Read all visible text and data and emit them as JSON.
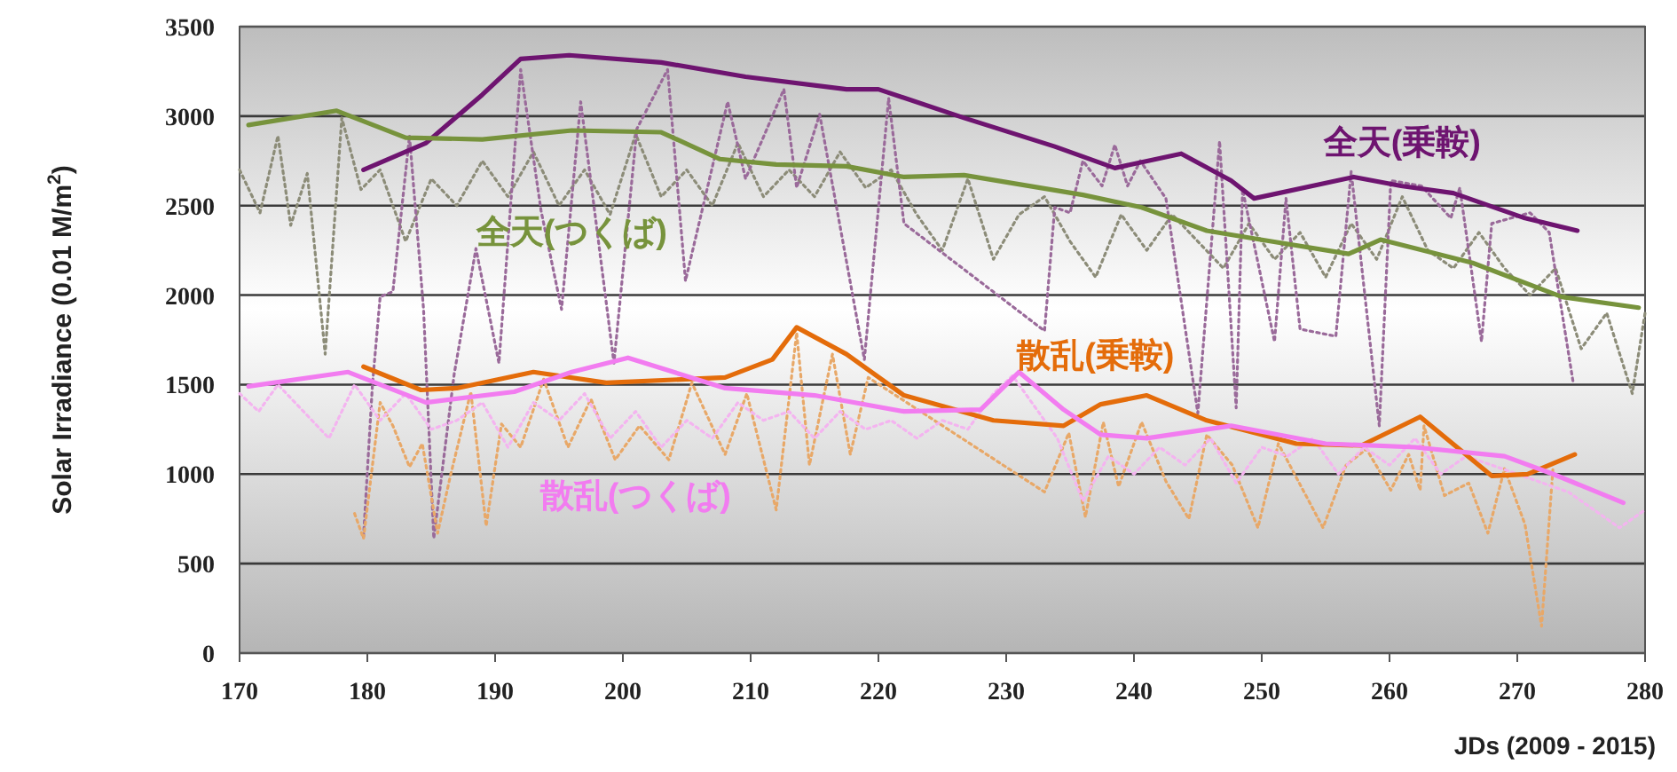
{
  "chart_data": {
    "type": "line",
    "xlabel": "JDs (2009 - 2015)",
    "ylabel": "Solar Irradiance (0.01 M/m$^{2}$)",
    "xlim": [
      170,
      280
    ],
    "xticks": [
      170,
      180,
      190,
      200,
      210,
      220,
      230,
      240,
      250,
      260,
      270,
      280
    ],
    "ylim": [
      0,
      3500
    ],
    "yticks": [
      0,
      500,
      1000,
      1500,
      2000,
      2500,
      3000,
      3500
    ],
    "grid": "y",
    "legend": false,
    "marker": "none",
    "series": [
      {
        "color": "#8c8c78",
        "line_style": "dotted",
        "x": [
          170,
          171.6,
          173,
          174,
          175.3,
          176.7,
          178,
          179.5,
          181,
          183,
          185,
          187,
          189,
          191,
          193,
          195,
          197,
          199,
          201,
          203,
          205,
          207,
          209,
          211,
          213,
          215,
          217,
          219,
          221,
          223,
          225,
          227,
          229,
          231,
          233,
          235,
          237,
          239,
          241,
          243,
          245,
          247,
          249,
          251,
          253,
          255,
          257,
          259,
          261,
          263,
          265,
          267,
          269,
          271,
          273,
          275,
          277,
          279,
          280
        ],
        "values": [
          2700,
          2460,
          2890,
          2390,
          2680,
          1670,
          2990,
          2590,
          2700,
          2300,
          2650,
          2500,
          2750,
          2550,
          2800,
          2500,
          2700,
          2450,
          2900,
          2550,
          2700,
          2500,
          2850,
          2550,
          2700,
          2550,
          2800,
          2600,
          2700,
          2450,
          2250,
          2650,
          2200,
          2450,
          2550,
          2300,
          2100,
          2450,
          2250,
          2450,
          2300,
          2150,
          2400,
          2200,
          2350,
          2100,
          2400,
          2200,
          2550,
          2250,
          2150,
          2350,
          2150,
          2000,
          2150,
          1700,
          1900,
          1450,
          1900
        ]
      },
      {
        "color": "#9a6a9a",
        "line_style": "dotted",
        "x": [
          179.7,
          180.4,
          181,
          182,
          183.3,
          184.4,
          185.2,
          186.8,
          188.5,
          190.3,
          192,
          193.6,
          195.2,
          196.7,
          199.3,
          201.1,
          203.5,
          204.9,
          208.2,
          209.6,
          212.6,
          213.6,
          215.4,
          218.9,
          220.8,
          222,
          233,
          233.8,
          235,
          236,
          237.5,
          238.5,
          239.5,
          240.5,
          242.5,
          245,
          246.7,
          248,
          248.5,
          251,
          251.9,
          253,
          255.8,
          257,
          259.2,
          260.1,
          262.5,
          264.8,
          265.5,
          267.2,
          268,
          271,
          272.5,
          274.4
        ],
        "values": [
          650,
          1500,
          1990,
          2020,
          2890,
          1920,
          640,
          1560,
          2260,
          1620,
          3260,
          2470,
          1920,
          3080,
          1620,
          2930,
          3260,
          2080,
          3080,
          2650,
          3150,
          2600,
          3010,
          1640,
          3100,
          2400,
          1800,
          2490,
          2460,
          2750,
          2610,
          2840,
          2610,
          2750,
          2540,
          1340,
          2860,
          1370,
          2590,
          1740,
          2540,
          1810,
          1770,
          2690,
          1270,
          2640,
          2610,
          2430,
          2600,
          1740,
          2400,
          2460,
          2350,
          1500
        ]
      },
      {
        "color": "#e8a868",
        "line_style": "dotted",
        "x": [
          179,
          179.7,
          181,
          182,
          183.3,
          184.3,
          185.5,
          186.5,
          188.1,
          189.3,
          190.5,
          192,
          193.8,
          195.7,
          197.5,
          199.4,
          201.3,
          203.6,
          205.4,
          208,
          209.7,
          212,
          213.6,
          214.6,
          216.4,
          217.8,
          219.2,
          233,
          234.9,
          236.2,
          237.6,
          238.8,
          240.6,
          242.5,
          244.3,
          245.7,
          247.7,
          249.7,
          251.3,
          254.8,
          256.6,
          258.2,
          260.1,
          261.5,
          262.4,
          262.7,
          264.3,
          266.2,
          267.7,
          269,
          270.6,
          271.9,
          272.8
        ],
        "values": [
          780,
          640,
          1400,
          1270,
          1040,
          1170,
          670,
          990,
          1460,
          710,
          1280,
          1150,
          1530,
          1150,
          1420,
          1080,
          1270,
          1080,
          1510,
          1110,
          1450,
          800,
          1790,
          1050,
          1670,
          1110,
          1540,
          900,
          1230,
          760,
          1290,
          930,
          1290,
          960,
          750,
          1220,
          1050,
          700,
          1170,
          700,
          1050,
          1140,
          910,
          1110,
          910,
          1270,
          880,
          950,
          670,
          1030,
          720,
          150,
          1040
        ]
      },
      {
        "color": "#f4b4f0",
        "line_style": "dotted",
        "x": [
          170,
          171.5,
          173,
          175,
          177,
          179,
          181,
          183,
          185,
          187,
          189,
          191,
          193,
          195,
          197,
          199,
          201,
          203,
          205,
          207,
          209,
          211,
          213,
          215,
          217,
          219,
          221,
          223,
          225,
          227,
          229,
          230.5,
          232,
          234,
          236,
          238,
          240,
          242,
          244,
          246,
          248,
          250,
          252,
          254,
          256,
          258,
          260,
          262,
          264,
          266,
          268,
          270,
          272,
          274,
          276,
          278,
          280
        ],
        "values": [
          1450,
          1350,
          1500,
          1350,
          1200,
          1500,
          1300,
          1450,
          1250,
          1300,
          1400,
          1150,
          1400,
          1300,
          1450,
          1200,
          1350,
          1150,
          1300,
          1200,
          1400,
          1300,
          1350,
          1200,
          1350,
          1250,
          1300,
          1200,
          1300,
          1250,
          1450,
          1550,
          1400,
          1200,
          850,
          1100,
          1000,
          1150,
          1050,
          1200,
          950,
          1150,
          1100,
          1200,
          1000,
          1150,
          1050,
          1200,
          1000,
          1100,
          1050,
          1000,
          950,
          900,
          800,
          700,
          800
        ]
      },
      {
        "name": "全天(乗鞍)",
        "color": "#6e1470",
        "x": [
          179.7,
          184.6,
          189,
          192,
          195.8,
          203,
          209.6,
          217.5,
          220,
          226.7,
          233.8,
          238.5,
          243.7,
          247.6,
          249.4,
          257.2,
          260.9,
          265,
          270.6,
          274.7
        ],
        "values": [
          2700,
          2850,
          3120,
          3320,
          3340,
          3300,
          3220,
          3150,
          3150,
          2990,
          2830,
          2710,
          2790,
          2640,
          2540,
          2660,
          2610,
          2570,
          2430,
          2360
        ]
      },
      {
        "name": "全天(つくば)",
        "color": "#77933c",
        "x": [
          170.7,
          177.6,
          183,
          189,
          196,
          203,
          207.6,
          212,
          217.5,
          222,
          226.7,
          236,
          240.6,
          245.7,
          249.9,
          256.8,
          259.3,
          266.5,
          273.5,
          279.5
        ],
        "values": [
          2950,
          3030,
          2880,
          2870,
          2920,
          2910,
          2760,
          2730,
          2720,
          2660,
          2670,
          2560,
          2490,
          2360,
          2310,
          2230,
          2310,
          2180,
          1990,
          1930
        ]
      },
      {
        "name": "散乱(乗鞍)",
        "color": "#e46c0a",
        "x": [
          179.7,
          184.2,
          187,
          193,
          198.7,
          208,
          211.7,
          213.6,
          217.5,
          222,
          229,
          234.5,
          237.4,
          241,
          245.7,
          252.7,
          257.8,
          262.4,
          268,
          270.8,
          274.5
        ],
        "values": [
          1600,
          1470,
          1480,
          1570,
          1510,
          1540,
          1640,
          1820,
          1670,
          1440,
          1300,
          1270,
          1390,
          1440,
          1300,
          1170,
          1160,
          1320,
          990,
          1000,
          1110
        ]
      },
      {
        "name": "散乱(つくば)",
        "color": "#f27cf0",
        "x": [
          170.7,
          178.5,
          184.6,
          191.5,
          196,
          200.4,
          208,
          215,
          222,
          228,
          231,
          234.5,
          237.4,
          241,
          247.6,
          255,
          262,
          269,
          272.8,
          278.3
        ],
        "values": [
          1490,
          1570,
          1400,
          1460,
          1570,
          1650,
          1480,
          1440,
          1350,
          1360,
          1570,
          1360,
          1220,
          1200,
          1270,
          1170,
          1150,
          1100,
          1000,
          840
        ]
      }
    ]
  }
}
